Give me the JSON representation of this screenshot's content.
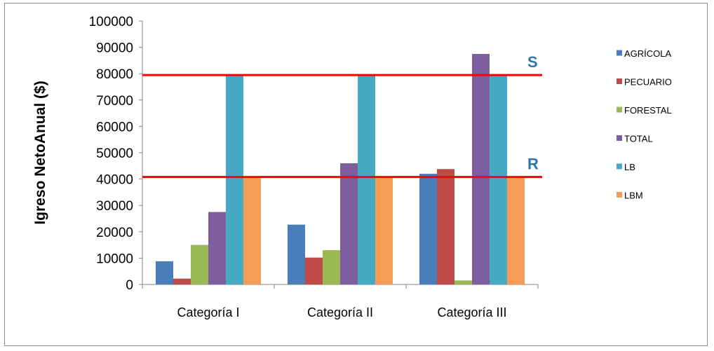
{
  "chart_data": {
    "type": "bar",
    "title": "",
    "xlabel": "",
    "ylabel": "Igreso NetoAnual ($)",
    "categories": [
      "Categoría I",
      "Categoría II",
      "Categoría III"
    ],
    "ylim": [
      0,
      100000
    ],
    "yticks": [
      0,
      10000,
      20000,
      30000,
      40000,
      50000,
      60000,
      70000,
      80000,
      90000,
      100000
    ],
    "grid": false,
    "legend_position": "right",
    "series": [
      {
        "name": "AGRÍCOLA",
        "color": "#4a7ebb",
        "values": [
          8800,
          22700,
          42000
        ]
      },
      {
        "name": "PECUARIO",
        "color": "#be4b48",
        "values": [
          2200,
          10200,
          43800
        ]
      },
      {
        "name": "FORESTAL",
        "color": "#98b954",
        "values": [
          15000,
          13000,
          1500
        ]
      },
      {
        "name": "TOTAL",
        "color": "#7d5fa0",
        "values": [
          27500,
          46000,
          87500
        ]
      },
      {
        "name": "LB",
        "color": "#46aac5",
        "values": [
          79500,
          79500,
          79500
        ]
      },
      {
        "name": "LBM",
        "color": "#f59d56",
        "values": [
          41000,
          41000,
          41000
        ]
      }
    ],
    "reference_lines": [
      {
        "label": "S",
        "y": 79500,
        "color": "#ff0000",
        "label_color": "#2e75b6"
      },
      {
        "label": "R",
        "y": 40800,
        "color": "#ff0000",
        "label_color": "#2e75b6"
      }
    ]
  }
}
